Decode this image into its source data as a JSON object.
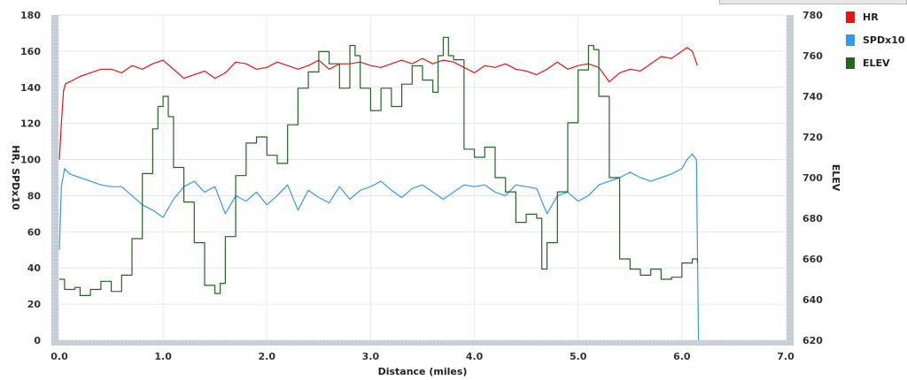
{
  "chart_data": {
    "type": "line",
    "xlabel": "Distance (miles)",
    "ylabel_left": "HR, SPDx10",
    "ylabel_right": "ELEV",
    "xlim": [
      0,
      7
    ],
    "ylim_left": [
      0,
      180
    ],
    "ylim_right": [
      620,
      780
    ],
    "x_ticks": [
      "0.0",
      "1.0",
      "2.0",
      "3.0",
      "4.0",
      "5.0",
      "6.0",
      "7.0"
    ],
    "y_left_ticks": [
      "0",
      "20",
      "40",
      "60",
      "80",
      "100",
      "120",
      "140",
      "160",
      "180"
    ],
    "y_right_ticks": [
      "620",
      "640",
      "660",
      "680",
      "700",
      "720",
      "740",
      "760",
      "780"
    ],
    "grid": true,
    "legend_position": "right",
    "series": [
      {
        "name": "HR",
        "axis": "left",
        "color": "#ee1111",
        "x": [
          0,
          0.02,
          0.04,
          0.06,
          0.1,
          0.2,
          0.3,
          0.4,
          0.5,
          0.6,
          0.7,
          0.8,
          0.9,
          1.0,
          1.1,
          1.2,
          1.3,
          1.4,
          1.5,
          1.6,
          1.7,
          1.8,
          1.9,
          2.0,
          2.1,
          2.2,
          2.3,
          2.4,
          2.5,
          2.6,
          2.7,
          2.8,
          2.9,
          3.0,
          3.1,
          3.2,
          3.3,
          3.4,
          3.5,
          3.6,
          3.7,
          3.8,
          3.9,
          4.0,
          4.1,
          4.2,
          4.3,
          4.4,
          4.5,
          4.6,
          4.7,
          4.8,
          4.9,
          5.0,
          5.1,
          5.2,
          5.3,
          5.4,
          5.5,
          5.6,
          5.7,
          5.8,
          5.9,
          6.0,
          6.05,
          6.1,
          6.15
        ],
        "values": [
          100,
          120,
          138,
          142,
          143,
          146,
          148,
          150,
          150,
          148,
          152,
          150,
          153,
          155,
          150,
          145,
          147,
          149,
          145,
          148,
          154,
          153,
          150,
          151,
          154,
          152,
          150,
          152,
          155,
          150,
          153,
          153,
          154,
          152,
          151,
          153,
          155,
          153,
          156,
          153,
          155,
          154,
          151,
          148,
          152,
          151,
          153,
          150,
          149,
          147,
          150,
          154,
          150,
          152,
          153,
          151,
          143,
          148,
          150,
          149,
          153,
          157,
          156,
          160,
          162,
          160,
          152
        ]
      },
      {
        "name": "SPDx10",
        "axis": "left",
        "color": "#3399ee",
        "x": [
          0,
          0.02,
          0.05,
          0.1,
          0.2,
          0.3,
          0.4,
          0.5,
          0.6,
          0.7,
          0.8,
          0.9,
          1.0,
          1.1,
          1.2,
          1.3,
          1.4,
          1.5,
          1.6,
          1.7,
          1.8,
          1.9,
          2.0,
          2.1,
          2.2,
          2.3,
          2.4,
          2.5,
          2.6,
          2.7,
          2.8,
          2.9,
          3.0,
          3.1,
          3.2,
          3.3,
          3.4,
          3.5,
          3.6,
          3.7,
          3.8,
          3.9,
          4.0,
          4.1,
          4.2,
          4.3,
          4.4,
          4.5,
          4.6,
          4.7,
          4.8,
          4.9,
          5.0,
          5.1,
          5.2,
          5.3,
          5.4,
          5.5,
          5.6,
          5.7,
          5.8,
          5.9,
          6.0,
          6.05,
          6.1,
          6.14,
          6.15,
          6.16
        ],
        "values": [
          50,
          85,
          95,
          92,
          90,
          88,
          86,
          85,
          85,
          80,
          75,
          72,
          68,
          78,
          85,
          88,
          82,
          85,
          70,
          80,
          77,
          82,
          75,
          80,
          86,
          72,
          83,
          79,
          76,
          85,
          78,
          83,
          85,
          88,
          83,
          79,
          84,
          86,
          82,
          78,
          82,
          86,
          85,
          86,
          82,
          80,
          86,
          85,
          84,
          70,
          80,
          82,
          77,
          80,
          86,
          88,
          90,
          93,
          90,
          88,
          90,
          92,
          95,
          100,
          103,
          100,
          50,
          0
        ]
      },
      {
        "name": "ELEV",
        "axis": "right",
        "color": "#226622",
        "x": [
          0,
          0.05,
          0.1,
          0.15,
          0.2,
          0.25,
          0.3,
          0.4,
          0.5,
          0.6,
          0.7,
          0.8,
          0.9,
          0.95,
          1.0,
          1.05,
          1.1,
          1.2,
          1.3,
          1.4,
          1.5,
          1.55,
          1.6,
          1.7,
          1.8,
          1.9,
          2.0,
          2.1,
          2.2,
          2.3,
          2.4,
          2.45,
          2.5,
          2.6,
          2.7,
          2.8,
          2.85,
          2.9,
          3.0,
          3.1,
          3.2,
          3.3,
          3.4,
          3.5,
          3.6,
          3.65,
          3.7,
          3.75,
          3.8,
          3.9,
          4.0,
          4.1,
          4.2,
          4.3,
          4.4,
          4.5,
          4.6,
          4.65,
          4.7,
          4.8,
          4.9,
          5.0,
          5.1,
          5.15,
          5.2,
          5.3,
          5.4,
          5.5,
          5.6,
          5.7,
          5.8,
          5.9,
          6.0,
          6.1,
          6.15
        ],
        "values": [
          650,
          645,
          645,
          646,
          642,
          642,
          645,
          649,
          644,
          652,
          670,
          702,
          724,
          735,
          740,
          730,
          705,
          688,
          668,
          647,
          643,
          648,
          671,
          701,
          717,
          720,
          711,
          707,
          726,
          744,
          752,
          752,
          762,
          756,
          744,
          765,
          760,
          744,
          733,
          744,
          735,
          746,
          755,
          748,
          742,
          760,
          769,
          760,
          758,
          714,
          710,
          715,
          700,
          693,
          678,
          682,
          680,
          655,
          668,
          693,
          727,
          753,
          765,
          763,
          740,
          700,
          660,
          655,
          652,
          655,
          650,
          651,
          658,
          660,
          658
        ]
      }
    ]
  }
}
